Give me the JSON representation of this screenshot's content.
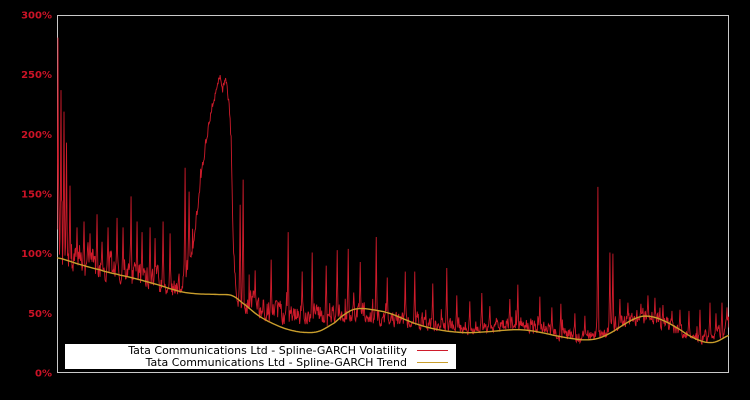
{
  "chart_data": {
    "type": "line",
    "title": "",
    "xlabel": "",
    "ylabel": "",
    "grid": false,
    "background_color": "#000000",
    "plot_border_color": "#c9c9c9",
    "y_axis": {
      "range": [
        0,
        300
      ],
      "tick_values": [
        0,
        50,
        100,
        150,
        200,
        250,
        300
      ],
      "tick_labels": [
        "0%",
        "50%",
        "100%",
        "150%",
        "200%",
        "250%",
        "300%"
      ],
      "tick_color": "#cc1327"
    },
    "x_axis": {
      "tick_labels": []
    },
    "legend": {
      "position": "bottom-left",
      "background": "#ffffff",
      "text_color": "#000000"
    },
    "series": [
      {
        "name": "Tata Communications Ltd - Spline-GARCH Volatility",
        "color": "#cf1b2b",
        "style": "noisy-line",
        "seed": 77,
        "n_points": 1344,
        "baseline": [
          [
            0,
            99
          ],
          [
            0.005,
            96
          ],
          [
            0.02,
            92
          ],
          [
            0.04,
            90
          ],
          [
            0.065,
            88
          ],
          [
            0.09,
            84
          ],
          [
            0.115,
            80
          ],
          [
            0.14,
            77
          ],
          [
            0.16,
            73
          ],
          [
            0.175,
            68
          ],
          [
            0.185,
            72
          ],
          [
            0.195,
            90
          ],
          [
            0.205,
            120
          ],
          [
            0.215,
            165
          ],
          [
            0.225,
            205
          ],
          [
            0.235,
            232
          ],
          [
            0.2425,
            245
          ],
          [
            0.246,
            236
          ],
          [
            0.2505,
            245
          ],
          [
            0.255,
            228
          ],
          [
            0.259,
            195
          ],
          [
            0.262,
            120
          ],
          [
            0.266,
            70
          ],
          [
            0.272,
            62
          ],
          [
            0.285,
            57
          ],
          [
            0.31,
            51
          ],
          [
            0.34,
            48
          ],
          [
            0.37,
            47
          ],
          [
            0.4,
            48
          ],
          [
            0.425,
            50
          ],
          [
            0.44,
            50
          ],
          [
            0.465,
            48
          ],
          [
            0.49,
            45
          ],
          [
            0.52,
            43
          ],
          [
            0.55,
            41
          ],
          [
            0.58,
            39
          ],
          [
            0.61,
            37
          ],
          [
            0.64,
            39
          ],
          [
            0.67,
            41
          ],
          [
            0.7,
            39
          ],
          [
            0.73,
            35
          ],
          [
            0.76,
            31
          ],
          [
            0.79,
            30
          ],
          [
            0.81,
            33
          ],
          [
            0.835,
            40
          ],
          [
            0.86,
            45
          ],
          [
            0.88,
            45
          ],
          [
            0.9,
            42
          ],
          [
            0.925,
            36
          ],
          [
            0.945,
            31
          ],
          [
            0.96,
            29
          ],
          [
            0.975,
            30
          ],
          [
            0.99,
            33
          ],
          [
            1.0,
            40
          ]
        ],
        "noise_amp": [
          [
            0,
            14
          ],
          [
            0.02,
            13
          ],
          [
            0.05,
            12
          ],
          [
            0.1,
            10
          ],
          [
            0.15,
            9
          ],
          [
            0.175,
            8
          ],
          [
            0.2,
            7
          ],
          [
            0.215,
            4
          ],
          [
            0.25,
            4
          ],
          [
            0.262,
            6
          ],
          [
            0.28,
            9
          ],
          [
            0.32,
            8
          ],
          [
            0.36,
            7.5
          ],
          [
            0.42,
            7.5
          ],
          [
            0.48,
            7
          ],
          [
            0.55,
            6
          ],
          [
            0.62,
            5.5
          ],
          [
            0.68,
            6
          ],
          [
            0.74,
            5
          ],
          [
            0.8,
            5
          ],
          [
            0.84,
            6
          ],
          [
            0.88,
            6
          ],
          [
            0.93,
            5
          ],
          [
            0.97,
            5
          ],
          [
            1.0,
            6
          ]
        ],
        "spikes": [
          [
            0.0015,
            281
          ],
          [
            0.006,
            237
          ],
          [
            0.0104,
            219
          ],
          [
            0.0141,
            193
          ],
          [
            0.0193,
            157
          ],
          [
            0.0298,
            122
          ],
          [
            0.0402,
            127
          ],
          [
            0.0491,
            117
          ],
          [
            0.0595,
            133
          ],
          [
            0.067,
            110
          ],
          [
            0.0759,
            122
          ],
          [
            0.0893,
            130
          ],
          [
            0.0982,
            122
          ],
          [
            0.1101,
            148
          ],
          [
            0.119,
            127
          ],
          [
            0.1265,
            118
          ],
          [
            0.1384,
            122
          ],
          [
            0.1458,
            113
          ],
          [
            0.1577,
            127
          ],
          [
            0.1682,
            117
          ],
          [
            0.1905,
            172
          ],
          [
            0.1964,
            152
          ],
          [
            0.2723,
            141
          ],
          [
            0.2768,
            162
          ],
          [
            0.2946,
            86
          ],
          [
            0.3185,
            95
          ],
          [
            0.3438,
            118
          ],
          [
            0.3646,
            85
          ],
          [
            0.3795,
            101
          ],
          [
            0.4003,
            90
          ],
          [
            0.4167,
            103
          ],
          [
            0.433,
            104
          ],
          [
            0.4509,
            93
          ],
          [
            0.4747,
            114
          ],
          [
            0.4911,
            80
          ],
          [
            0.5179,
            85
          ],
          [
            0.5327,
            85
          ],
          [
            0.5595,
            75
          ],
          [
            0.5804,
            88
          ],
          [
            0.5952,
            65
          ],
          [
            0.6146,
            60
          ],
          [
            0.6324,
            67
          ],
          [
            0.6443,
            56
          ],
          [
            0.6741,
            62
          ],
          [
            0.686,
            74
          ],
          [
            0.7188,
            64
          ],
          [
            0.7366,
            55
          ],
          [
            0.75,
            58
          ],
          [
            0.7708,
            50
          ],
          [
            0.7857,
            48
          ],
          [
            0.8051,
            156
          ],
          [
            0.8229,
            101
          ],
          [
            0.8274,
            100
          ],
          [
            0.8378,
            62
          ],
          [
            0.8497,
            59
          ],
          [
            0.869,
            58
          ],
          [
            0.8795,
            65
          ],
          [
            0.8899,
            63
          ],
          [
            0.9018,
            57
          ],
          [
            0.9152,
            52
          ],
          [
            0.9271,
            53
          ],
          [
            0.9405,
            52
          ],
          [
            0.9568,
            53
          ],
          [
            0.9717,
            59
          ],
          [
            0.9806,
            50
          ],
          [
            0.9896,
            59
          ],
          [
            0.997,
            55
          ]
        ]
      },
      {
        "name": "Tata Communications Ltd - Spline-GARCH Trend",
        "color": "#c99e2c",
        "style": "smooth-line",
        "points": [
          [
            0,
            96.5
          ],
          [
            0.034,
            91
          ],
          [
            0.064,
            86.5
          ],
          [
            0.079,
            84
          ],
          [
            0.094,
            82
          ],
          [
            0.124,
            78
          ],
          [
            0.153,
            73.5
          ],
          [
            0.176,
            69.5
          ],
          [
            0.19,
            67.5
          ],
          [
            0.21,
            66.3
          ],
          [
            0.24,
            65.8
          ],
          [
            0.26,
            65
          ],
          [
            0.275,
            59
          ],
          [
            0.3,
            48
          ],
          [
            0.325,
            40.5
          ],
          [
            0.347,
            36
          ],
          [
            0.369,
            34
          ],
          [
            0.39,
            35
          ],
          [
            0.413,
            42
          ],
          [
            0.425,
            48
          ],
          [
            0.44,
            53
          ],
          [
            0.455,
            54
          ],
          [
            0.47,
            53
          ],
          [
            0.485,
            51.5
          ],
          [
            0.5,
            49
          ],
          [
            0.515,
            45.5
          ],
          [
            0.53,
            42
          ],
          [
            0.55,
            38.5
          ],
          [
            0.57,
            36
          ],
          [
            0.59,
            34.5
          ],
          [
            0.61,
            33.8
          ],
          [
            0.63,
            34.2
          ],
          [
            0.65,
            35
          ],
          [
            0.67,
            36
          ],
          [
            0.685,
            36.3
          ],
          [
            0.7,
            35.8
          ],
          [
            0.72,
            34
          ],
          [
            0.74,
            31.5
          ],
          [
            0.765,
            29
          ],
          [
            0.785,
            27.8
          ],
          [
            0.805,
            29
          ],
          [
            0.825,
            34
          ],
          [
            0.845,
            41
          ],
          [
            0.862,
            46
          ],
          [
            0.875,
            47.7
          ],
          [
            0.89,
            46.5
          ],
          [
            0.908,
            42.5
          ],
          [
            0.925,
            37
          ],
          [
            0.942,
            31
          ],
          [
            0.958,
            27
          ],
          [
            0.97,
            25.5
          ],
          [
            0.982,
            26.5
          ],
          [
            1.0,
            31.5
          ]
        ]
      }
    ]
  },
  "legend": {
    "items": [
      {
        "label": "Tata Communications Ltd - Spline-GARCH Volatility"
      },
      {
        "label": "Tata Communications Ltd - Spline-GARCH Trend"
      }
    ]
  }
}
